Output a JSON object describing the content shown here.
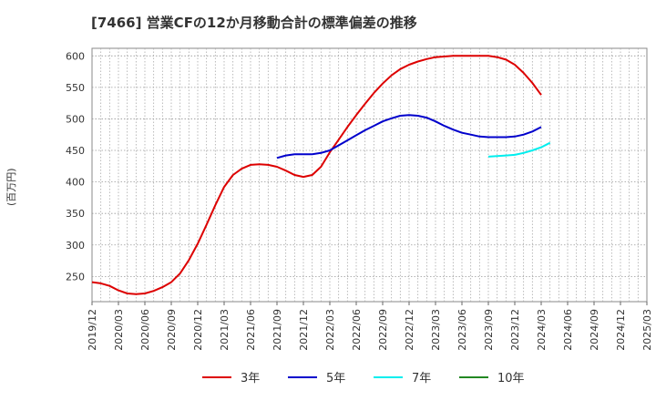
{
  "chart_data": {
    "type": "line",
    "title": "[7466]  営業CFの12か月移動合計の標準偏差の推移",
    "ylabel": "(百万円)",
    "xlabel": "",
    "ylim": [
      210,
      612
    ],
    "yticks": [
      250,
      300,
      350,
      400,
      450,
      500,
      550,
      600
    ],
    "x_range": [
      "2019/12",
      "2025/03"
    ],
    "x_ticks": [
      "2019/12",
      "2020/03",
      "2020/06",
      "2020/09",
      "2020/12",
      "2021/03",
      "2021/06",
      "2021/09",
      "2021/12",
      "2022/03",
      "2022/06",
      "2022/09",
      "2022/12",
      "2023/03",
      "2023/06",
      "2023/09",
      "2023/12",
      "2024/03",
      "2024/06",
      "2024/09",
      "2024/12",
      "2025/03"
    ],
    "grid": true,
    "legend_position": "bottom",
    "series": [
      {
        "name": "3年",
        "color": "#dd0000",
        "points": [
          [
            "2019/12",
            241
          ],
          [
            "2020/01",
            239
          ],
          [
            "2020/02",
            235
          ],
          [
            "2020/03",
            228
          ],
          [
            "2020/04",
            223
          ],
          [
            "2020/05",
            222
          ],
          [
            "2020/06",
            223
          ],
          [
            "2020/07",
            227
          ],
          [
            "2020/08",
            233
          ],
          [
            "2020/09",
            241
          ],
          [
            "2020/10",
            255
          ],
          [
            "2020/11",
            276
          ],
          [
            "2020/12",
            302
          ],
          [
            "2021/01",
            332
          ],
          [
            "2021/02",
            363
          ],
          [
            "2021/03",
            392
          ],
          [
            "2021/04",
            411
          ],
          [
            "2021/05",
            421
          ],
          [
            "2021/06",
            427
          ],
          [
            "2021/07",
            428
          ],
          [
            "2021/08",
            427
          ],
          [
            "2021/09",
            424
          ],
          [
            "2021/10",
            418
          ],
          [
            "2021/11",
            411
          ],
          [
            "2021/12",
            408
          ],
          [
            "2022/01",
            411
          ],
          [
            "2022/02",
            424
          ],
          [
            "2022/03",
            447
          ],
          [
            "2022/04",
            467
          ],
          [
            "2022/05",
            487
          ],
          [
            "2022/06",
            506
          ],
          [
            "2022/07",
            524
          ],
          [
            "2022/08",
            541
          ],
          [
            "2022/09",
            556
          ],
          [
            "2022/10",
            569
          ],
          [
            "2022/11",
            579
          ],
          [
            "2022/12",
            586
          ],
          [
            "2023/01",
            591
          ],
          [
            "2023/02",
            595
          ],
          [
            "2023/03",
            598
          ],
          [
            "2023/04",
            599
          ],
          [
            "2023/05",
            600
          ],
          [
            "2023/06",
            600
          ],
          [
            "2023/07",
            600
          ],
          [
            "2023/08",
            600
          ],
          [
            "2023/09",
            600
          ],
          [
            "2023/10",
            598
          ],
          [
            "2023/11",
            594
          ],
          [
            "2023/12",
            586
          ],
          [
            "2024/01",
            573
          ],
          [
            "2024/02",
            557
          ],
          [
            "2024/03",
            538
          ]
        ]
      },
      {
        "name": "5年",
        "color": "#0000cc",
        "points": [
          [
            "2021/09",
            438
          ],
          [
            "2021/10",
            442
          ],
          [
            "2021/11",
            444
          ],
          [
            "2021/12",
            444
          ],
          [
            "2022/01",
            444
          ],
          [
            "2022/02",
            446
          ],
          [
            "2022/03",
            450
          ],
          [
            "2022/04",
            458
          ],
          [
            "2022/05",
            466
          ],
          [
            "2022/06",
            474
          ],
          [
            "2022/07",
            482
          ],
          [
            "2022/08",
            489
          ],
          [
            "2022/09",
            496
          ],
          [
            "2022/10",
            501
          ],
          [
            "2022/11",
            505
          ],
          [
            "2022/12",
            506
          ],
          [
            "2023/01",
            505
          ],
          [
            "2023/02",
            502
          ],
          [
            "2023/03",
            496
          ],
          [
            "2023/04",
            489
          ],
          [
            "2023/05",
            483
          ],
          [
            "2023/06",
            478
          ],
          [
            "2023/07",
            475
          ],
          [
            "2023/08",
            472
          ],
          [
            "2023/09",
            471
          ],
          [
            "2023/10",
            471
          ],
          [
            "2023/11",
            471
          ],
          [
            "2023/12",
            472
          ],
          [
            "2024/01",
            475
          ],
          [
            "2024/02",
            480
          ],
          [
            "2024/03",
            487
          ]
        ]
      },
      {
        "name": "7年",
        "color": "#00eeee",
        "points": [
          [
            "2023/09",
            440
          ],
          [
            "2023/10",
            441
          ],
          [
            "2023/11",
            442
          ],
          [
            "2023/12",
            443
          ],
          [
            "2024/01",
            446
          ],
          [
            "2024/02",
            450
          ],
          [
            "2024/03",
            455
          ],
          [
            "2024/04",
            462
          ]
        ]
      },
      {
        "name": "10年",
        "color": "#228822",
        "points": []
      }
    ]
  }
}
